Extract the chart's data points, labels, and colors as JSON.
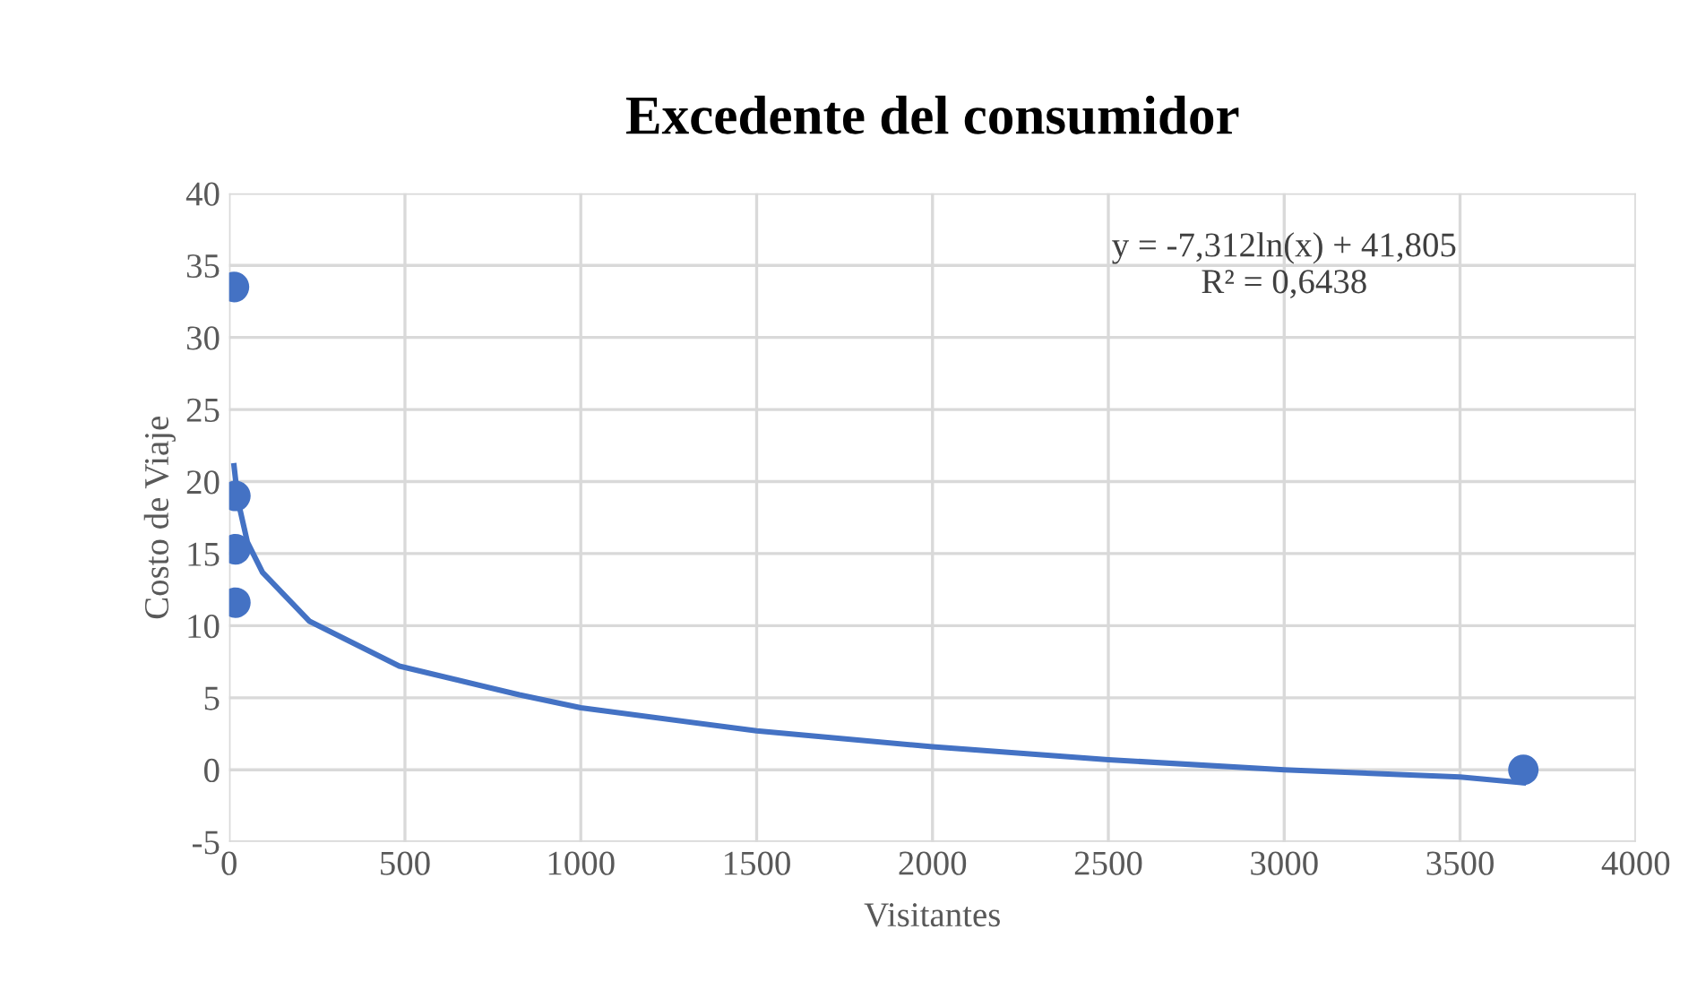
{
  "chart_data": {
    "type": "scatter",
    "title": "Excedente del consumidor",
    "xlabel": "Visitantes",
    "ylabel": "Costo de Viaje",
    "series": [
      {
        "color": "#4472c4",
        "x": [
          14,
          18,
          18,
          18,
          3680
        ],
        "values": [
          33.5,
          19,
          15.3,
          11.6,
          0
        ]
      },
      {
        "type": "line",
        "color": "#4472c4",
        "marker": "none",
        "x": [
          14,
          25,
          52,
          95,
          229,
          484,
          825,
          1000,
          1500,
          2000,
          2500,
          3000,
          3500,
          3680
        ],
        "values": [
          21.1,
          18.7,
          15.8,
          13.7,
          10.3,
          7.2,
          5.2,
          4.3,
          2.7,
          1.6,
          0.7,
          0,
          -0.5,
          -0.9
        ]
      }
    ],
    "annotations": [
      "y = -7,312ln(x) + 41,805\nR² = 0,6438"
    ],
    "marker": "circle",
    "grid": true,
    "legend": false,
    "xlim": [
      0,
      4000
    ],
    "xticks": [
      0,
      500,
      1000,
      1500,
      2000,
      2500,
      3000,
      3500,
      4000
    ],
    "ylim": [
      -5,
      40
    ],
    "yticks": [
      -5,
      0,
      5,
      10,
      15,
      20,
      25,
      30,
      35,
      40
    ]
  }
}
